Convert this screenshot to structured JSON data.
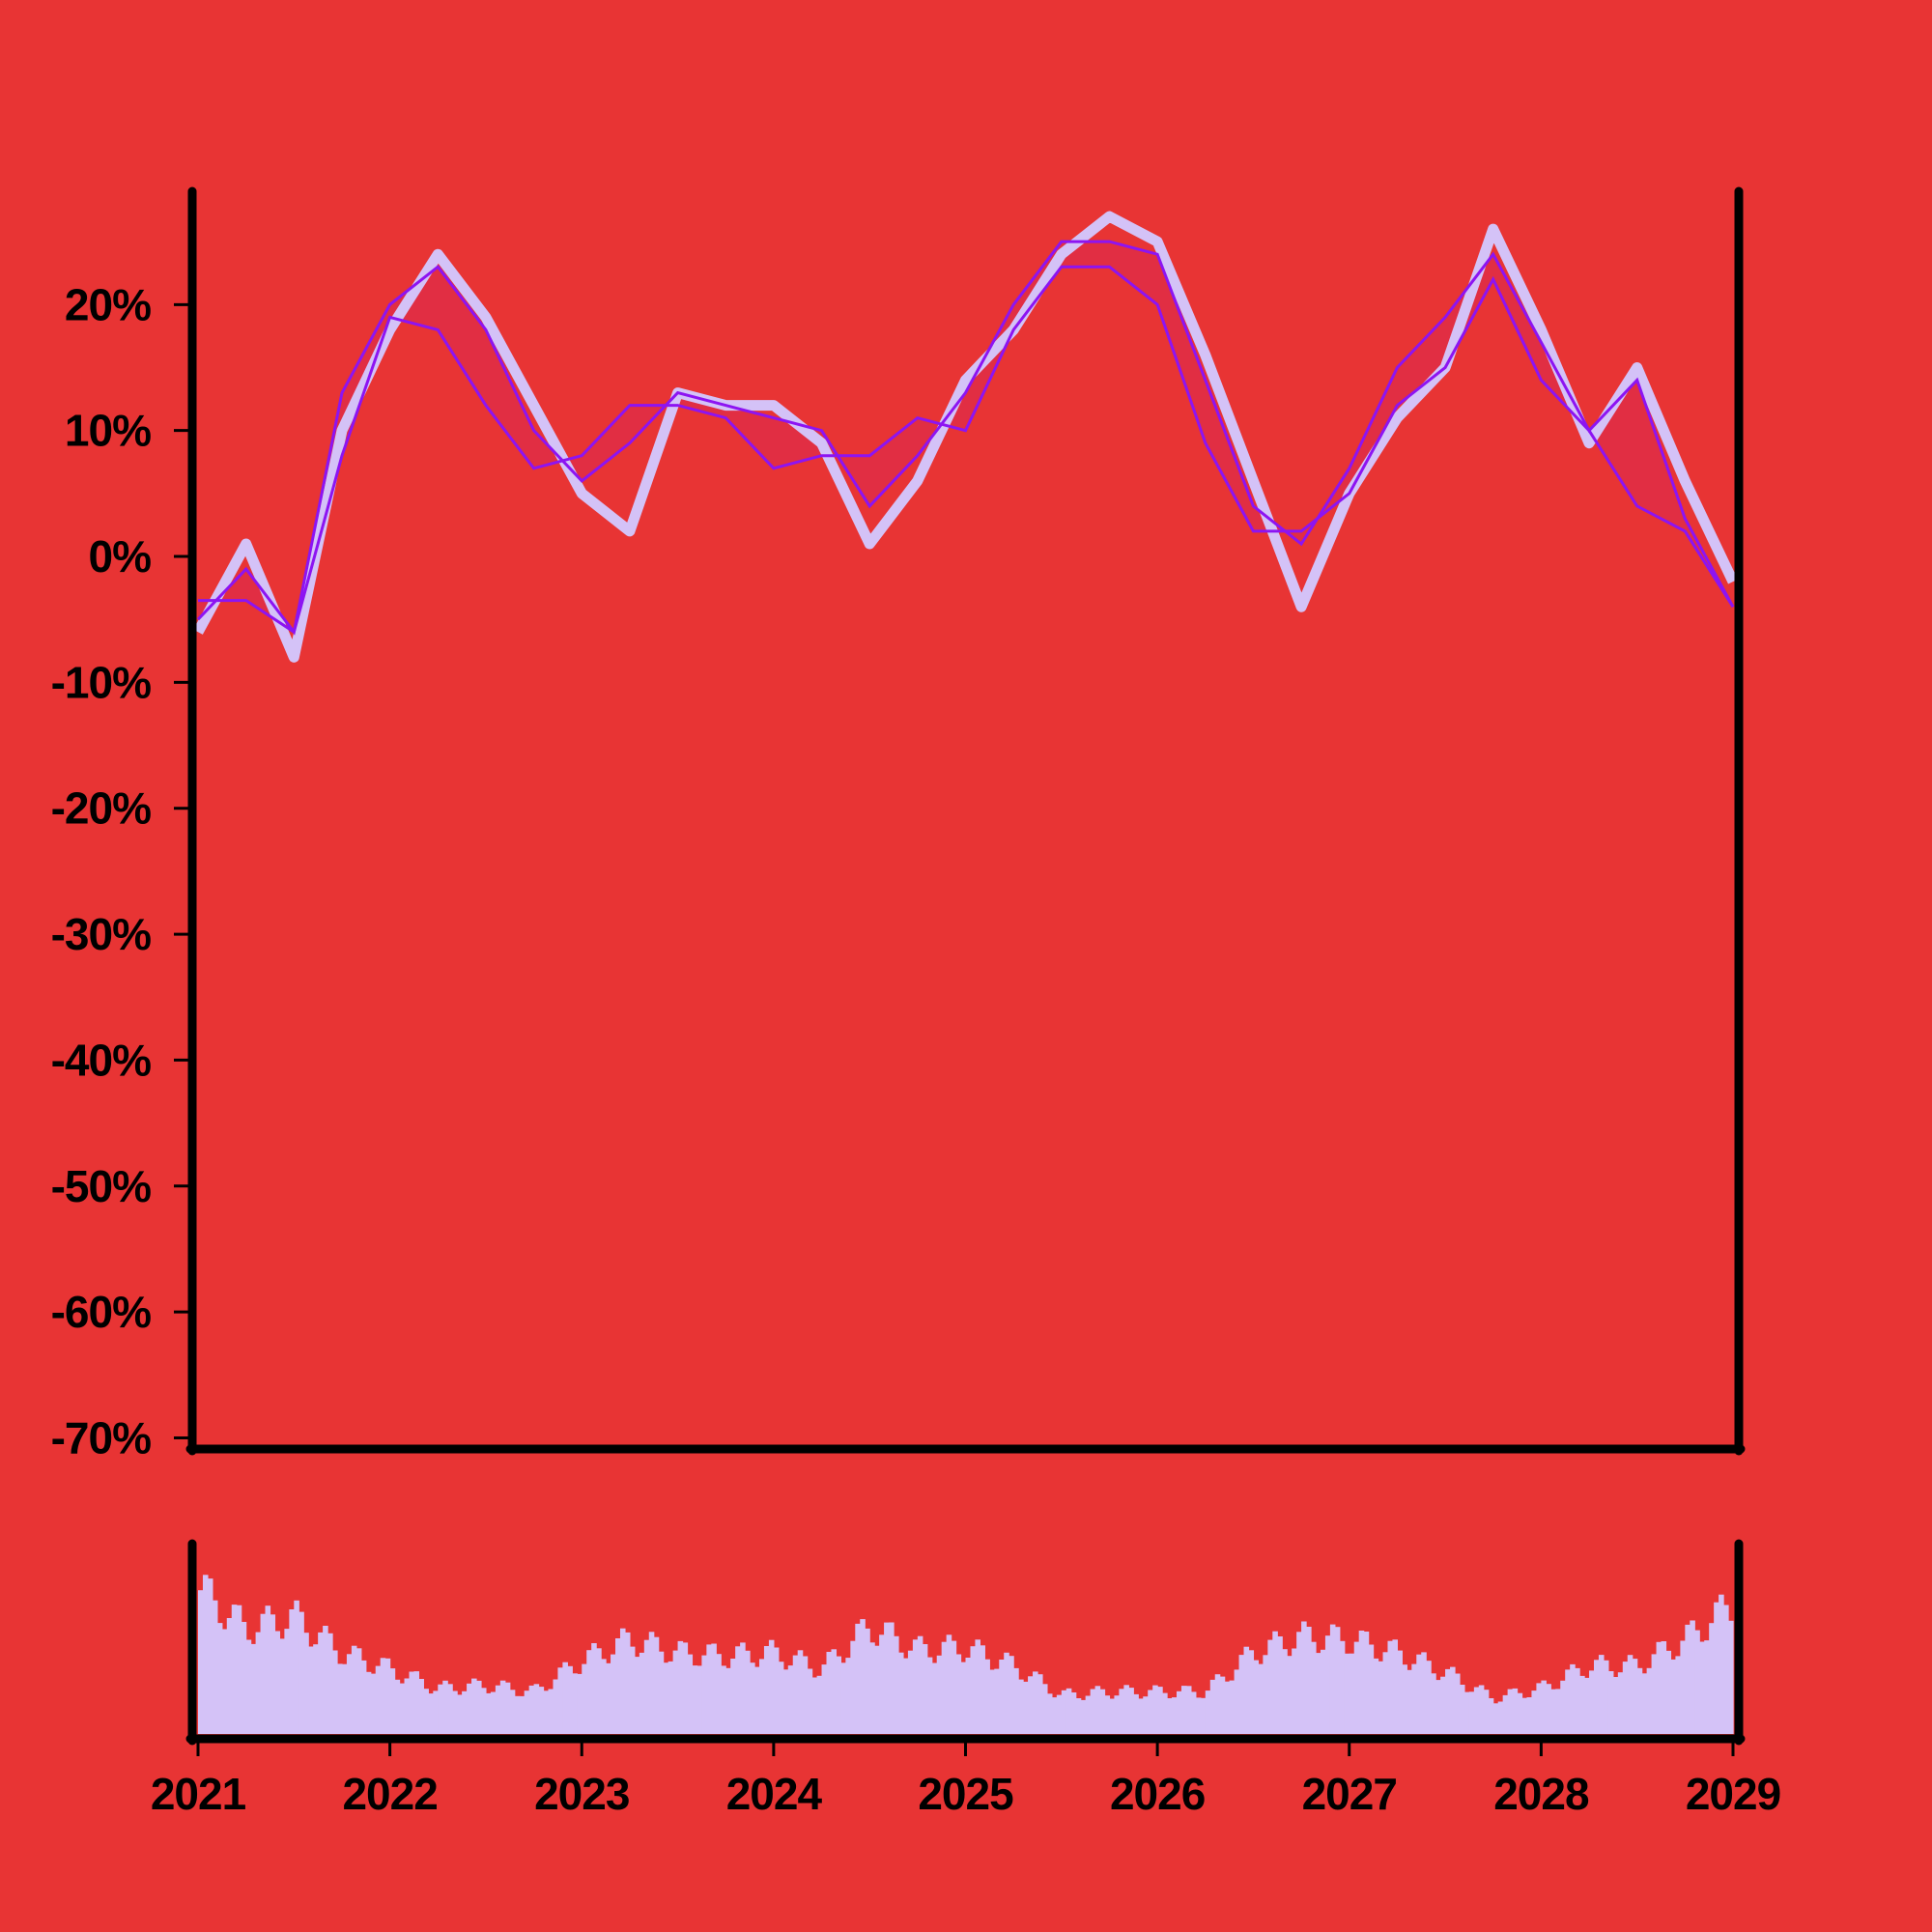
{
  "colors": {
    "background": "#e83434",
    "price_line": "#d4c2f7",
    "band_line": "#8d14f2",
    "band_fill": "#e02e45",
    "volume": "#d4c2f7",
    "axis": "#000000"
  },
  "chart_data": {
    "type": "line",
    "title": "",
    "xlabel": "",
    "ylabel": "",
    "y_tick_labels": [
      "20%",
      "10%",
      "0%",
      "-10%",
      "-20%",
      "-30%",
      "-40%",
      "-50%",
      "-60%",
      "-70%"
    ],
    "y_ticks": [
      20,
      10,
      0,
      -10,
      -20,
      -30,
      -40,
      -50,
      -60,
      -70
    ],
    "x_tick_labels": [
      "2021",
      "2022",
      "2023",
      "2024",
      "2025",
      "2026",
      "2027",
      "2028",
      "2029"
    ],
    "x_ticks": [
      2021,
      2022,
      2023,
      2024,
      2025,
      2026,
      2027,
      2028,
      2029
    ],
    "xlim": [
      2021,
      2029
    ],
    "ylim": [
      -70.5,
      29
    ],
    "grid": false,
    "x": [
      2021.0,
      2021.25,
      2021.5,
      2021.75,
      2022.0,
      2022.25,
      2022.5,
      2022.75,
      2023.0,
      2023.25,
      2023.5,
      2023.75,
      2024.0,
      2024.25,
      2024.5,
      2024.75,
      2025.0,
      2025.25,
      2025.5,
      2025.75,
      2026.0,
      2026.25,
      2026.5,
      2026.75,
      2027.0,
      2027.25,
      2027.5,
      2027.75,
      2028.0,
      2028.25,
      2028.5,
      2028.75,
      2029.0
    ],
    "series": [
      {
        "key": "price",
        "values": [
          -6,
          1,
          -8,
          10,
          18,
          24,
          19,
          12,
          5,
          2,
          13,
          12,
          12,
          9,
          1,
          6,
          14,
          18,
          24,
          27,
          25,
          16,
          6,
          -4,
          5,
          11,
          15,
          26,
          18,
          9,
          15,
          6,
          -2
        ]
      },
      {
        "key": "band_upper",
        "values": [
          -5,
          -1,
          -6,
          13,
          20,
          23,
          18,
          10,
          6,
          9,
          13,
          12,
          11,
          10,
          4,
          8,
          13,
          20,
          25,
          25,
          24,
          14,
          4,
          1,
          7,
          15,
          19,
          24,
          17,
          10,
          14,
          3,
          -4
        ]
      },
      {
        "key": "band_lower",
        "values": [
          -3.5,
          -3.5,
          -6,
          8,
          19,
          18,
          12,
          7,
          8,
          12,
          12,
          11,
          7,
          8,
          8,
          11,
          10,
          18,
          23,
          23,
          20,
          9,
          2,
          2,
          5,
          12,
          15,
          22,
          14,
          10,
          4,
          2,
          -4
        ]
      }
    ],
    "volume_x": [
      2021.0,
      2021.25,
      2021.5,
      2021.75,
      2022.0,
      2022.25,
      2022.5,
      2022.75,
      2023.0,
      2023.25,
      2023.5,
      2023.75,
      2024.0,
      2024.25,
      2024.5,
      2024.75,
      2025.0,
      2025.25,
      2025.5,
      2025.75,
      2026.0,
      2026.25,
      2026.5,
      2026.75,
      2027.0,
      2027.25,
      2027.5,
      2027.75,
      2028.0,
      2028.25,
      2028.5,
      2028.75,
      2029.0
    ],
    "volume": [
      0.9,
      0.65,
      0.72,
      0.5,
      0.4,
      0.28,
      0.3,
      0.26,
      0.45,
      0.58,
      0.5,
      0.48,
      0.5,
      0.4,
      0.66,
      0.52,
      0.53,
      0.42,
      0.24,
      0.26,
      0.26,
      0.26,
      0.5,
      0.6,
      0.58,
      0.5,
      0.38,
      0.22,
      0.28,
      0.42,
      0.42,
      0.58,
      0.8
    ]
  }
}
